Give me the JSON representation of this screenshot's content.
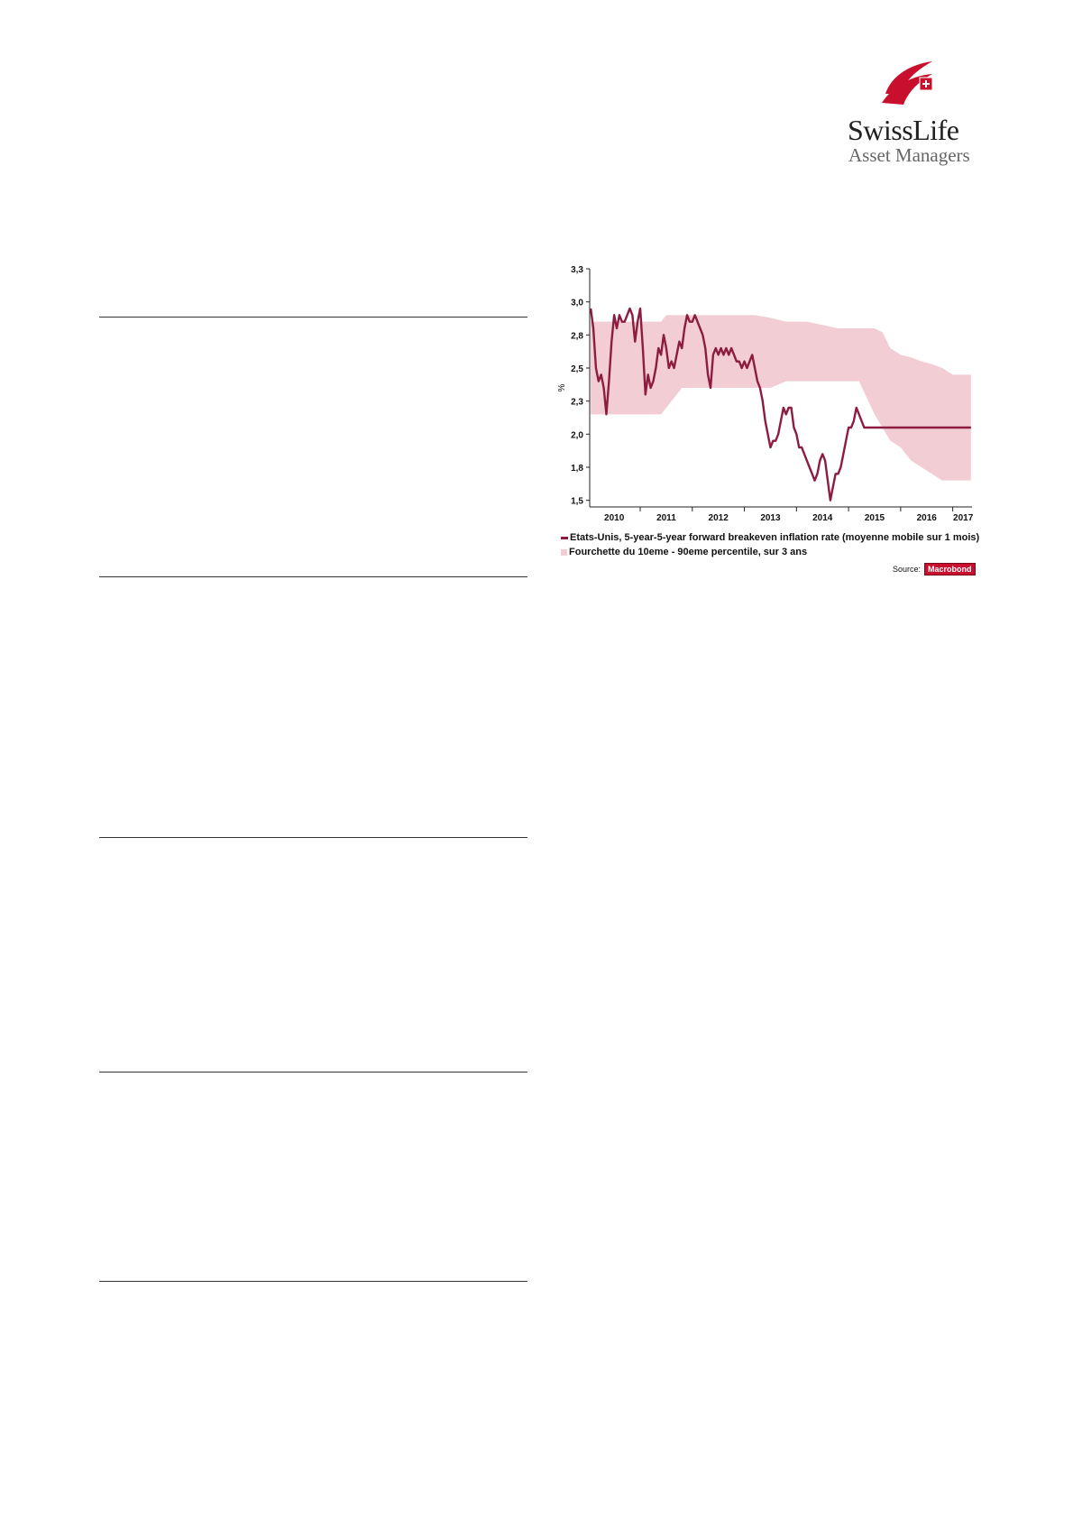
{
  "brand": {
    "name_main": "SwissLife",
    "name_sub": "Asset Managers",
    "color": "#c8102e"
  },
  "chart_data": {
    "type": "line",
    "title": "",
    "xlabel": "",
    "ylabel": "%",
    "ylim": [
      1.5,
      3.3
    ],
    "xlim": [
      2009.83,
      2017.17
    ],
    "yticks": [
      "3,3",
      "3,0",
      "2,8",
      "2,5",
      "2,3",
      "2,0",
      "1,8",
      "1,5"
    ],
    "ytick_values": [
      3.3,
      3.05,
      2.8,
      2.55,
      2.3,
      2.05,
      1.8,
      1.55
    ],
    "xtick_labels": [
      "2010",
      "2011",
      "2012",
      "2013",
      "2014",
      "2015",
      "2016",
      "2017"
    ],
    "xtick_label_positions": [
      2010.3,
      2011.3,
      2012.3,
      2013.3,
      2014.3,
      2015.3,
      2016.3,
      2017.0
    ],
    "xtick_marks": [
      2010.8,
      2011.8,
      2012.8,
      2013.8,
      2014.8,
      2015.8,
      2016.8
    ],
    "grid": false,
    "legend_position": "bottom",
    "series": [
      {
        "name": "Etats-Unis, 5-year-5-year forward breakeven inflation rate (moyenne mobile sur 1 mois)",
        "kind": "line",
        "color": "#8c1d40",
        "x": [
          2009.85,
          2009.9,
          2009.95,
          2010.0,
          2010.05,
          2010.1,
          2010.15,
          2010.2,
          2010.25,
          2010.3,
          2010.35,
          2010.4,
          2010.45,
          2010.5,
          2010.55,
          2010.6,
          2010.65,
          2010.7,
          2010.75,
          2010.8,
          2010.85,
          2010.9,
          2010.95,
          2011.0,
          2011.05,
          2011.1,
          2011.15,
          2011.2,
          2011.25,
          2011.3,
          2011.35,
          2011.4,
          2011.45,
          2011.5,
          2011.55,
          2011.6,
          2011.65,
          2011.7,
          2011.75,
          2011.8,
          2011.85,
          2011.9,
          2011.95,
          2012.0,
          2012.05,
          2012.1,
          2012.15,
          2012.2,
          2012.25,
          2012.3,
          2012.35,
          2012.4,
          2012.45,
          2012.5,
          2012.55,
          2012.6,
          2012.65,
          2012.7,
          2012.75,
          2012.8,
          2012.85,
          2012.9,
          2012.95,
          2013.0,
          2013.05,
          2013.1,
          2013.15,
          2013.2,
          2013.25,
          2013.3,
          2013.35,
          2013.4,
          2013.45,
          2013.5,
          2013.55,
          2013.6,
          2013.65,
          2013.7,
          2013.75,
          2013.8,
          2013.85,
          2013.9,
          2013.95,
          2014.0,
          2014.05,
          2014.1,
          2014.15,
          2014.2,
          2014.25,
          2014.3,
          2014.35,
          2014.4,
          2014.45,
          2014.5,
          2014.55,
          2014.6,
          2014.65,
          2014.7,
          2014.75,
          2014.8,
          2014.85,
          2014.9,
          2014.95,
          2015.0,
          2015.05,
          2015.1,
          2015.15,
          2015.2,
          2015.25,
          2015.3,
          2015.35,
          2015.4,
          2015.45,
          2015.5,
          2015.55,
          2015.6,
          2015.65,
          2015.7,
          2015.75,
          2015.8,
          2015.85,
          2015.9,
          2015.95,
          2016.0,
          2016.05,
          2016.1,
          2016.15,
          2016.2,
          2016.25,
          2016.3,
          2016.35,
          2016.4,
          2016.45,
          2016.5,
          2016.55,
          2016.6,
          2016.65,
          2016.7,
          2016.75,
          2016.8,
          2016.85,
          2016.9,
          2016.95,
          2017.0,
          2017.05,
          2017.1,
          2017.15
        ],
        "y": [
          3.0,
          2.85,
          2.55,
          2.45,
          2.5,
          2.4,
          2.2,
          2.45,
          2.75,
          2.95,
          2.85,
          2.95,
          2.9,
          2.9,
          2.95,
          3.0,
          2.95,
          2.75,
          2.9,
          3.0,
          2.7,
          2.35,
          2.5,
          2.4,
          2.45,
          2.55,
          2.7,
          2.65,
          2.8,
          2.7,
          2.55,
          2.6,
          2.55,
          2.65,
          2.75,
          2.7,
          2.85,
          2.95,
          2.9,
          2.9,
          2.95,
          2.9,
          2.85,
          2.8,
          2.7,
          2.5,
          2.4,
          2.65,
          2.7,
          2.65,
          2.7,
          2.65,
          2.7,
          2.65,
          2.7,
          2.65,
          2.6,
          2.6,
          2.55,
          2.6,
          2.55,
          2.6,
          2.65,
          2.55,
          2.45,
          2.4,
          2.3,
          2.15,
          2.05,
          1.95,
          2.0,
          2.0,
          2.05,
          2.15,
          2.25,
          2.2,
          2.25,
          2.25,
          2.1,
          2.05,
          1.95,
          1.95,
          1.9,
          1.85,
          1.8,
          1.75,
          1.7,
          1.75,
          1.85,
          1.9,
          1.85,
          1.7,
          1.55,
          1.65,
          1.75,
          1.75,
          1.8,
          1.9,
          2.0,
          2.1,
          2.1,
          2.15,
          2.25,
          2.2,
          2.15,
          2.1,
          2.1,
          2.1,
          2.1,
          2.1,
          2.1,
          2.1,
          2.1,
          2.1,
          2.1,
          2.1,
          2.1,
          2.1,
          2.1,
          2.1,
          2.1,
          2.1,
          2.1,
          2.1,
          2.1,
          2.1,
          2.1,
          2.1,
          2.1,
          2.1,
          2.1,
          2.1,
          2.1,
          2.1,
          2.1,
          2.1,
          2.1,
          2.1,
          2.1,
          2.1,
          2.1,
          2.1,
          2.1,
          2.1,
          2.1,
          2.1,
          2.1
        ]
      },
      {
        "name": "Fourchette du 10eme - 90eme percentile, sur 3 ans",
        "kind": "band",
        "color": "#f2cdd4",
        "x": [
          2009.85,
          2010.5,
          2011.2,
          2011.3,
          2011.5,
          2011.6,
          2012.0,
          2013.0,
          2013.3,
          2013.6,
          2014.0,
          2014.6,
          2014.8,
          2014.9,
          2015.0,
          2015.3,
          2015.45,
          2015.6,
          2015.8,
          2016.0,
          2016.2,
          2016.4,
          2016.6,
          2016.8,
          2017.0,
          2017.15
        ],
        "upper": [
          2.9,
          2.9,
          2.9,
          2.95,
          2.95,
          2.95,
          2.95,
          2.95,
          2.93,
          2.9,
          2.9,
          2.85,
          2.85,
          2.85,
          2.85,
          2.85,
          2.82,
          2.7,
          2.65,
          2.63,
          2.6,
          2.58,
          2.55,
          2.5,
          2.5,
          2.5
        ],
        "lower": [
          2.2,
          2.2,
          2.2,
          2.25,
          2.35,
          2.4,
          2.4,
          2.4,
          2.4,
          2.45,
          2.45,
          2.45,
          2.45,
          2.45,
          2.45,
          2.2,
          2.1,
          2.0,
          1.95,
          1.85,
          1.8,
          1.75,
          1.7,
          1.7,
          1.7,
          1.7
        ]
      }
    ],
    "source_label": "Source:",
    "source_name": "Macrobond"
  }
}
